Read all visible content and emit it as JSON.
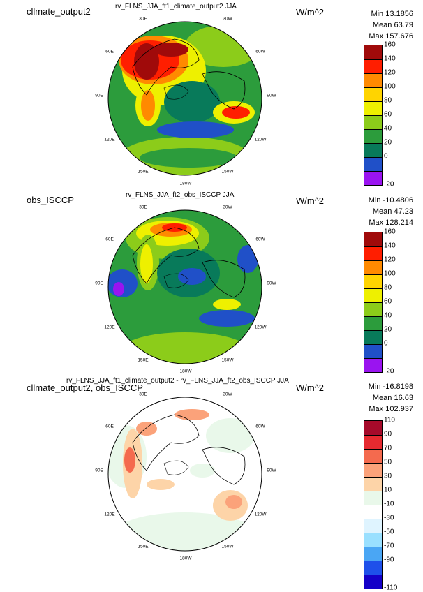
{
  "panels": [
    {
      "case_label": "cllmate_output2",
      "title": "rv_FLNS_JJA_ft1_climate_output2 JJA",
      "units": "W/m^2",
      "stats": {
        "min": "Min 13.1856",
        "mean": "Mean 63.79",
        "max": "Max 157.676"
      },
      "colorbar": {
        "ticks": [
          "160",
          "140",
          "120",
          "100",
          "80",
          "60",
          "40",
          "20",
          "0",
          "-20"
        ],
        "colors": [
          "#a00a0a",
          "#ff1e00",
          "#ff8a00",
          "#ffd400",
          "#eef000",
          "#8ccc1a",
          "#2c9c3c",
          "#087a5a",
          "#2050c8",
          "#9a14f0"
        ]
      },
      "lon_labels": [
        "30E",
        "30W",
        "60E",
        "60W",
        "90E",
        "90W",
        "120E",
        "120W",
        "150E",
        "150W",
        "180W"
      ]
    },
    {
      "case_label": "obs_ISCCP",
      "title": "rv_FLNS_JJA_ft2_obs_ISCCP JJA",
      "units": "W/m^2",
      "stats": {
        "min": "Min -10.4806",
        "mean": "Mean 47.23",
        "max": "Max 128.214"
      },
      "colorbar": {
        "ticks": [
          "160",
          "140",
          "120",
          "100",
          "80",
          "60",
          "40",
          "20",
          "0",
          "-20"
        ],
        "colors": [
          "#a00a0a",
          "#ff1e00",
          "#ff8a00",
          "#ffd400",
          "#eef000",
          "#8ccc1a",
          "#2c9c3c",
          "#087a5a",
          "#2050c8",
          "#9a14f0"
        ]
      },
      "lon_labels": [
        "30E",
        "30W",
        "60E",
        "60W",
        "90E",
        "90W",
        "120E",
        "120W",
        "150E",
        "150W",
        "180W"
      ]
    },
    {
      "case_label": "cllmate_output2, obs_ISCCP",
      "title": "rv_FLNS_JJA_ft1_climate_output2 - rv_FLNS_JJA_ft2_obs_ISCCP JJA",
      "units": "W/m^2",
      "stats": {
        "min": "Min -16.8198",
        "mean": "Mean 16.63",
        "max": "Max 102.937"
      },
      "colorbar": {
        "ticks": [
          "110",
          "90",
          "70",
          "50",
          "30",
          "10",
          "-10",
          "-30",
          "-50",
          "-70",
          "-90",
          "-110"
        ],
        "colors": [
          "#a60a2a",
          "#e62a30",
          "#f46a4e",
          "#fba27a",
          "#fdd4a8",
          "#e9f8ea",
          "#ffffff",
          "#dff4ff",
          "#9ae0ff",
          "#4aa6f4",
          "#1e50ea",
          "#1400c8"
        ]
      },
      "lon_labels": [
        "30E",
        "30W",
        "60E",
        "60W",
        "90E",
        "90W",
        "120E",
        "120W",
        "150E",
        "150W",
        "180W"
      ]
    }
  ]
}
